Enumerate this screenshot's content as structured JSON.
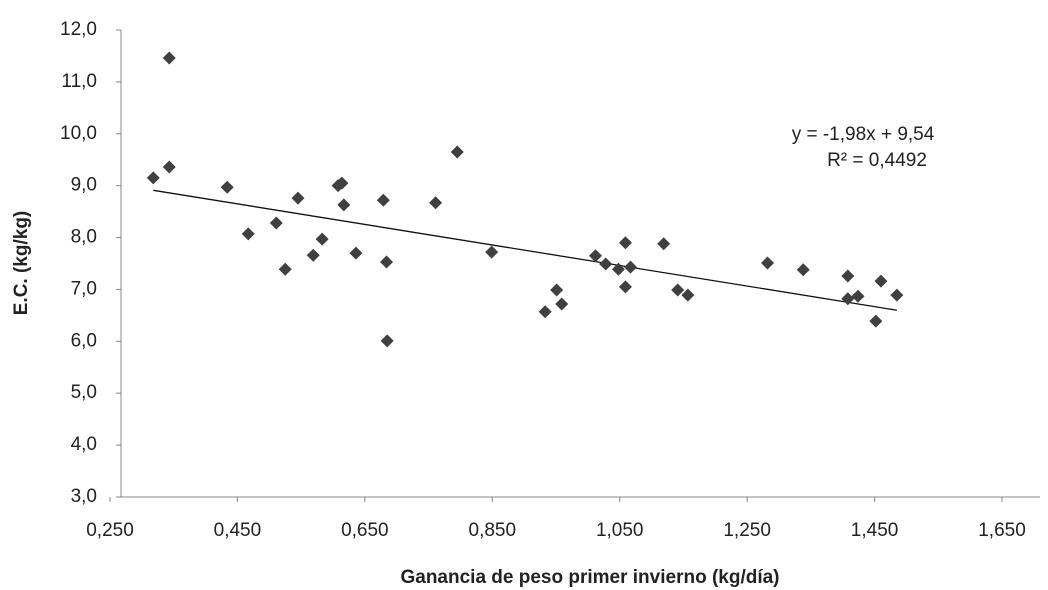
{
  "chart_data": {
    "type": "scatter",
    "x_label": "Ganancia de peso primer invierno (kg/día)",
    "y_label": "E.C. (kg/kg)",
    "annotations": [
      "y = -1,98x + 9,54",
      "R² = 0,4492"
    ],
    "trendline": {
      "slope": -1.98,
      "intercept": 9.54
    },
    "color": "#404040",
    "xlim": [
      0.25,
      1.65
    ],
    "ylim": [
      3.0,
      12.0
    ],
    "xticks": [
      {
        "value": 0.25,
        "label": "0,250"
      },
      {
        "value": 0.45,
        "label": "0,450"
      },
      {
        "value": 0.65,
        "label": "0,650"
      },
      {
        "value": 0.85,
        "label": "0,850"
      },
      {
        "value": 1.05,
        "label": "1,050"
      },
      {
        "value": 1.25,
        "label": "1,250"
      },
      {
        "value": 1.45,
        "label": "1,450"
      },
      {
        "value": 1.65,
        "label": "1,650"
      }
    ],
    "yticks": [
      {
        "value": 3,
        "label": "3,0"
      },
      {
        "value": 4,
        "label": "4,0"
      },
      {
        "value": 5,
        "label": "5,0"
      },
      {
        "value": 6,
        "label": "6,0"
      },
      {
        "value": 7,
        "label": "7,0"
      },
      {
        "value": 8,
        "label": "8,0"
      },
      {
        "value": 9,
        "label": "9,0"
      },
      {
        "value": 10,
        "label": "10,0"
      },
      {
        "value": 11,
        "label": "11,0"
      },
      {
        "value": 12,
        "label": "12,0"
      }
    ],
    "grid": false,
    "x": [
      0.318,
      0.343,
      0.343,
      0.434,
      0.467,
      0.511,
      0.525,
      0.545,
      0.569,
      0.583,
      0.608,
      0.614,
      0.617,
      0.636,
      0.679,
      0.684,
      0.685,
      0.761,
      0.795,
      0.849,
      0.933,
      0.951,
      0.959,
      1.012,
      1.028,
      1.048,
      1.059,
      1.059,
      1.067,
      1.119,
      1.141,
      1.157,
      1.282,
      1.338,
      1.408,
      1.408,
      1.424,
      1.46,
      1.452,
      1.485
    ],
    "values": [
      9.15,
      11.46,
      9.36,
      8.97,
      8.07,
      8.28,
      7.39,
      8.76,
      7.66,
      7.97,
      9.0,
      9.05,
      8.63,
      7.7,
      8.72,
      7.53,
      6.01,
      8.67,
      9.65,
      7.72,
      6.57,
      6.99,
      6.72,
      7.65,
      7.49,
      7.39,
      7.9,
      7.05,
      7.43,
      7.88,
      6.99,
      6.89,
      7.51,
      7.38,
      7.26,
      6.82,
      6.87,
      7.16,
      6.39,
      6.89
    ]
  }
}
